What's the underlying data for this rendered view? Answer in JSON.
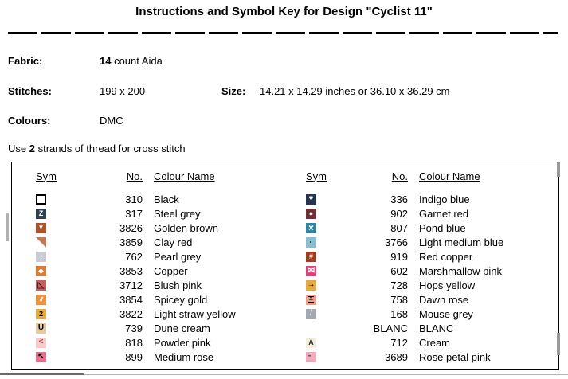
{
  "title": "Instructions and Symbol Key for Design \"Cyclist 11\"",
  "info": {
    "fabric_label": "Fabric:",
    "fabric_count": "14",
    "fabric_rest": " count Aida",
    "stitches_label": "Stitches:",
    "stitches_value": "199 x 200",
    "size_label": "Size:",
    "size_value": "14.21 x 14.29 inches or 36.10 x 36.29 cm",
    "colours_label": "Colours:",
    "colours_value": "DMC",
    "strands_pre": "Use ",
    "strands_count": "2",
    "strands_post": " strands of thread for cross stitch"
  },
  "key_table": {
    "headers": [
      "Sym",
      "No.",
      "Colour Name"
    ],
    "left_rows": [
      {
        "no": "310",
        "name": "Black",
        "icon": "square-outline",
        "bg": "#ffffff",
        "glyph": "",
        "fg": "#000000",
        "variant": "outline"
      },
      {
        "no": "317",
        "name": "Steel grey",
        "icon": "letter-z",
        "bg": "#31404f",
        "glyph": "Z",
        "fg": "#ffffff",
        "bold": true,
        "size": 9
      },
      {
        "no": "3826",
        "name": "Golden brown",
        "icon": "triangle-down",
        "bg": "#ad5229",
        "glyph": "▼",
        "fg": "#ffffff",
        "size": 8
      },
      {
        "no": "3859",
        "name": "Clay red",
        "icon": "diagonal-half",
        "bg": "#c17a59",
        "glyph": "",
        "fg": "#ffffff",
        "variant": "diag-ur"
      },
      {
        "no": "762",
        "name": "Pearl grey",
        "icon": "dash",
        "bg": "#c9ccd8",
        "glyph": "–",
        "fg": "#1a1a1a",
        "bold": true,
        "size": 10
      },
      {
        "no": "3853",
        "name": "Copper",
        "icon": "diamond",
        "bg": "#df7c33",
        "glyph": "◆",
        "fg": "#ffffff",
        "size": 9
      },
      {
        "no": "3712",
        "name": "Blush pink",
        "icon": "triangle-lower-left",
        "bg": "#c75e5e",
        "glyph": "◺",
        "fg": "#000000",
        "size": 11
      },
      {
        "no": "3854",
        "name": "Spicey gold",
        "icon": "triple-slash",
        "bg": "#f0913d",
        "glyph": "///",
        "fg": "#ffffff",
        "bold": true,
        "size": 7,
        "variant": "slashes"
      },
      {
        "no": "3822",
        "name": "Light straw yellow",
        "icon": "digit-two",
        "bg": "#e9aa3e",
        "glyph": "2",
        "fg": "#000000",
        "bold": true,
        "size": 9
      },
      {
        "no": "739",
        "name": "Dune cream",
        "icon": "letter-u",
        "bg": "#e5cba3",
        "glyph": "U",
        "fg": "#000000",
        "bold": true,
        "size": 10
      },
      {
        "no": "818",
        "name": "Powder pink",
        "icon": "less-than",
        "bg": "#f8cbcb",
        "glyph": "<",
        "fg": "#c03a4a",
        "bold": true,
        "size": 10
      },
      {
        "no": "899",
        "name": "Medium rose",
        "icon": "arrow-up-left",
        "bg": "#e4708b",
        "glyph": "↖",
        "fg": "#000000",
        "bold": true,
        "size": 10
      }
    ],
    "right_rows": [
      {
        "no": "336",
        "name": "Indigo blue",
        "icon": "heart",
        "bg": "#26344f",
        "glyph": "♥",
        "fg": "#ffffff",
        "size": 10
      },
      {
        "no": "902",
        "name": "Garnet red",
        "icon": "circle",
        "bg": "#6e2f36",
        "glyph": "●",
        "fg": "#ffffff",
        "size": 9
      },
      {
        "no": "807",
        "name": "Pond blue",
        "icon": "cross-x",
        "bg": "#2f83a3",
        "glyph": "×",
        "fg": "#ffffff",
        "bold": true,
        "size": 12
      },
      {
        "no": "3766",
        "name": "Light medium blue",
        "icon": "dot",
        "bg": "#86bed2",
        "glyph": "·",
        "fg": "#000000",
        "bold": true,
        "size": 12
      },
      {
        "no": "919",
        "name": "Red copper",
        "icon": "hash",
        "bg": "#a03d1f",
        "glyph": "#",
        "fg": "#ffffff",
        "size": 9
      },
      {
        "no": "602",
        "name": "Marshmallow pink",
        "icon": "bowtie",
        "bg": "#e23f7d",
        "glyph": "⋈",
        "fg": "#ffffff",
        "bold": true,
        "size": 10
      },
      {
        "no": "728",
        "name": "Hops yellow",
        "icon": "arrow-right",
        "bg": "#e9a93c",
        "glyph": "→",
        "fg": "#000000",
        "bold": true,
        "size": 10
      },
      {
        "no": "758",
        "name": "Dawn rose",
        "icon": "hourglass",
        "bg": "#ec9e88",
        "glyph": "X",
        "fg": "#000000",
        "bold": true,
        "size": 7,
        "variant": "hourglass"
      },
      {
        "no": "168",
        "name": "Mouse grey",
        "icon": "slash",
        "bg": "#a2a9b3",
        "glyph": "/",
        "fg": "#ffffff",
        "bold": true,
        "size": 10
      },
      {
        "no": "BLANC",
        "name": "BLANC",
        "icon": "blank",
        "bg": "#ffffff",
        "glyph": ""
      },
      {
        "no": "712",
        "name": "Cream",
        "icon": "letter-a",
        "bg": "#f3eeda",
        "glyph": "A",
        "fg": "#333333",
        "bold": true,
        "size": 9
      },
      {
        "no": "3689",
        "name": "Rose petal pink",
        "icon": "corner-bottom-right",
        "bg": "#f3a9bc",
        "glyph": "┘",
        "fg": "#000000",
        "bold": true,
        "size": 10
      }
    ]
  }
}
